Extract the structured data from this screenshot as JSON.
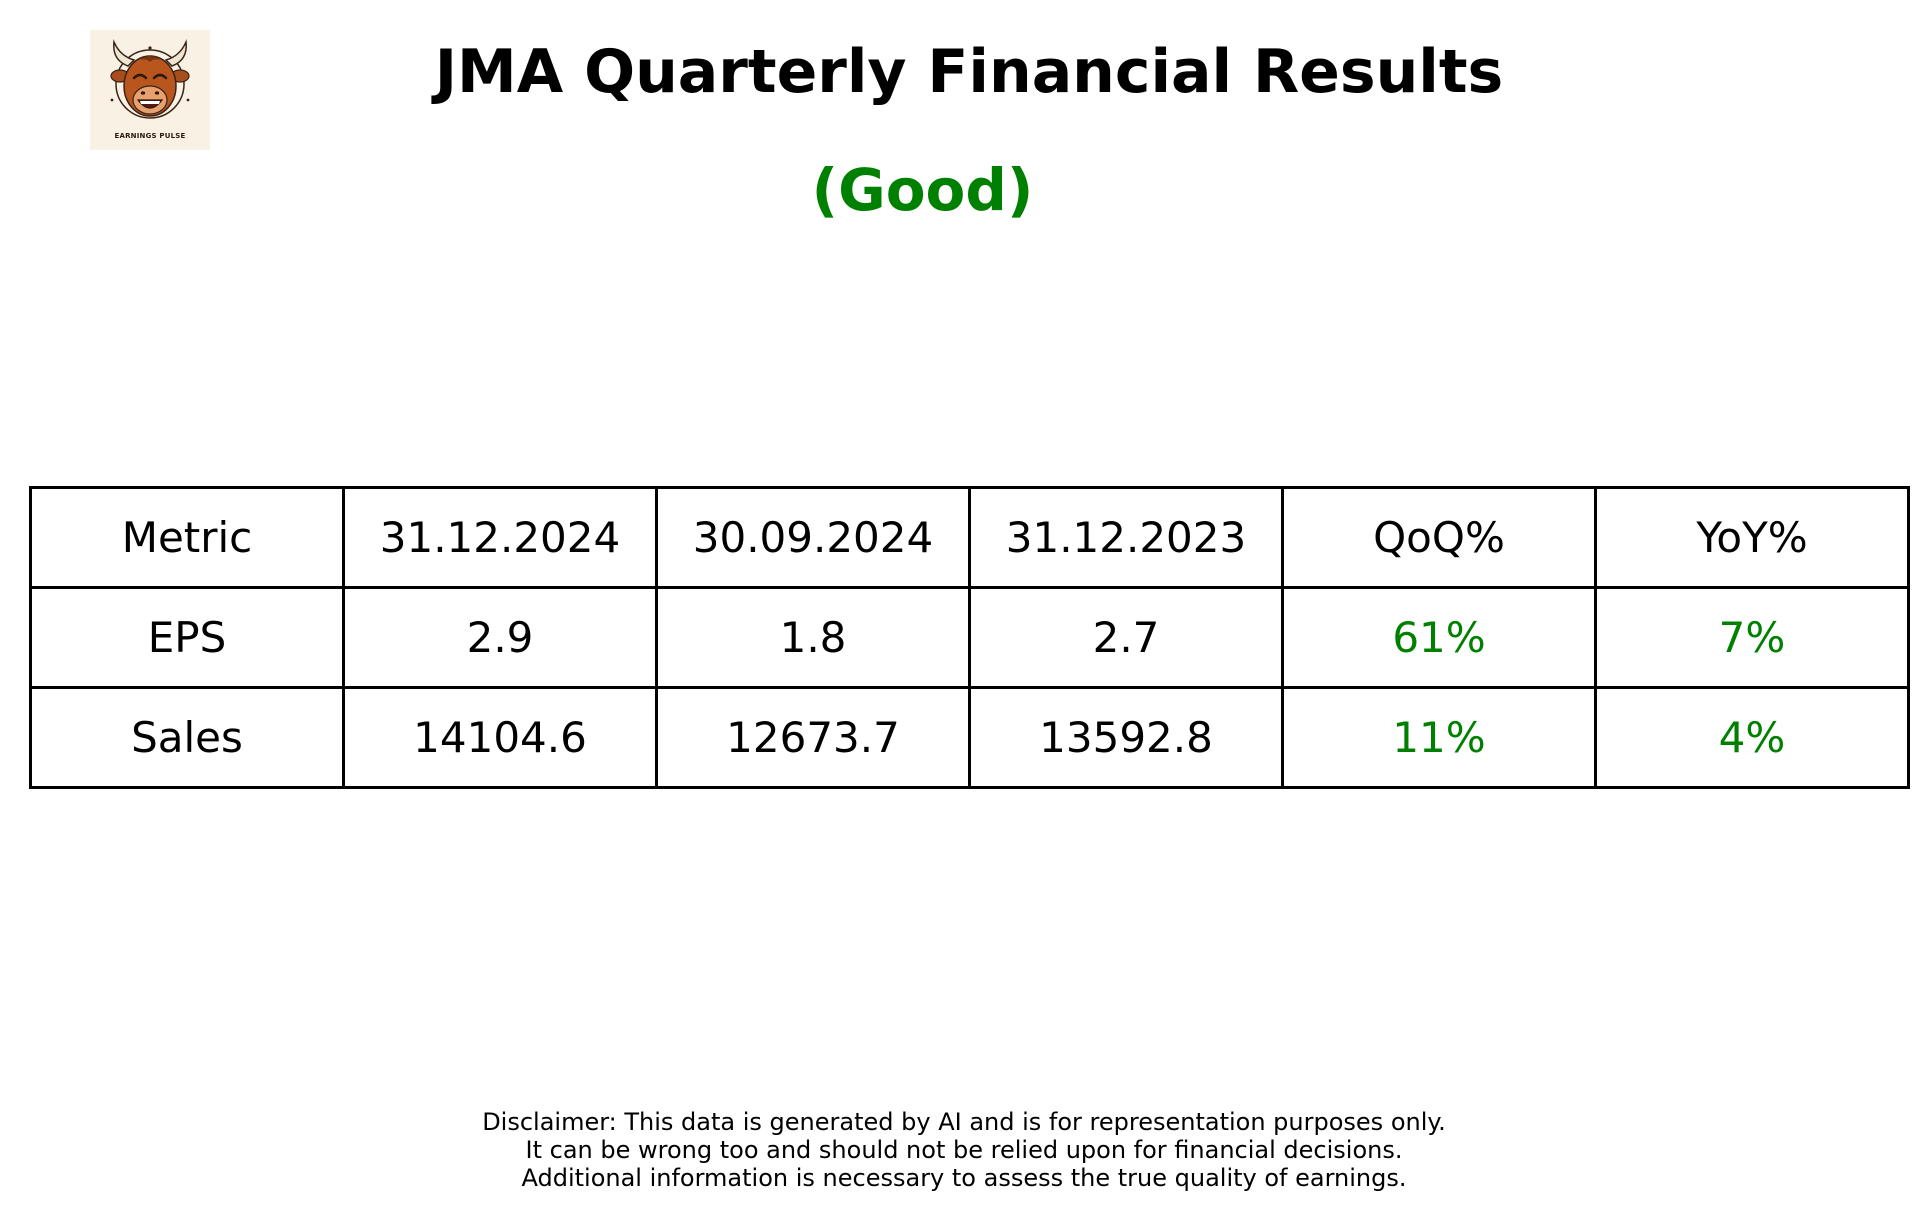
{
  "logo": {
    "text": "EARNINGS PULSE",
    "icon": "bull-mascot-icon"
  },
  "header": {
    "title": "JMA Quarterly Financial Results",
    "rating": "(Good)",
    "rating_color": "#008000"
  },
  "table": {
    "headers": [
      "Metric",
      "31.12.2024",
      "30.09.2024",
      "31.12.2023",
      "QoQ%",
      "YoY%"
    ],
    "rows": [
      [
        "EPS",
        "2.9",
        "1.8",
        "2.7",
        "61%",
        "7%"
      ],
      [
        "Sales",
        "14104.6",
        "12673.7",
        "13592.8",
        "11%",
        "4%"
      ]
    ],
    "positive_color": "#008000"
  },
  "disclaimer": {
    "lines": [
      "Disclaimer: This data is generated by AI and is for representation purposes only.",
      "It can be wrong too and should not be relied upon for financial decisions.",
      "Additional information is necessary to assess the true quality of earnings."
    ]
  }
}
